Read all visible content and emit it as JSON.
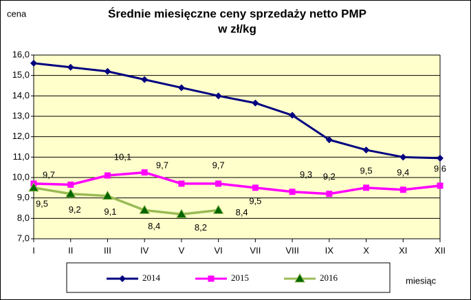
{
  "chart_data": {
    "type": "line",
    "title": "Średnie miesięczne ceny sprzedaży netto PMP",
    "subtitle": "w zł/kg",
    "ylabel": "cena",
    "xlabel": "miesiąc",
    "categories": [
      "I",
      "II",
      "III",
      "IV",
      "V",
      "VI",
      "VII",
      "VIII",
      "IX",
      "X",
      "XI",
      "XII"
    ],
    "ylim": [
      7,
      16
    ],
    "yticks": [
      {
        "value": 7,
        "label": "7,0"
      },
      {
        "value": 8,
        "label": "8,0"
      },
      {
        "value": 9,
        "label": "9,0"
      },
      {
        "value": 10,
        "label": "10,0"
      },
      {
        "value": 11,
        "label": "11,0"
      },
      {
        "value": 12,
        "label": "12,0"
      },
      {
        "value": 13,
        "label": "13,0"
      },
      {
        "value": 14,
        "label": "14,0"
      },
      {
        "value": 15,
        "label": "15,0"
      },
      {
        "value": 16,
        "label": "16,0"
      }
    ],
    "grid": true,
    "legend": "bottom",
    "series": [
      {
        "name": "2014",
        "color": "#000080",
        "marker": "diamond",
        "values": [
          15.6,
          15.4,
          15.2,
          14.8,
          14.4,
          14.0,
          13.65,
          13.05,
          11.85,
          11.35,
          11.0,
          10.95
        ]
      },
      {
        "name": "2015",
        "color": "#ff00ff",
        "marker": "square",
        "values": [
          9.7,
          9.65,
          10.1,
          10.25,
          9.7,
          9.7,
          9.5,
          9.3,
          9.2,
          9.5,
          9.4,
          9.6
        ],
        "value_labels": [
          "9,7",
          null,
          "10,1",
          null,
          "9,7",
          "9,7",
          "9,5",
          "9,3",
          "9,2",
          "9,5",
          "9,4",
          "9,6"
        ]
      },
      {
        "name": "2016",
        "color": "#99bb55",
        "marker_color": "#006600",
        "marker": "triangle",
        "values": [
          9.5,
          9.2,
          9.1,
          8.4,
          8.2,
          8.4,
          null,
          null,
          null,
          null,
          null,
          null
        ],
        "value_labels": [
          "9,5",
          "9,2",
          "9,1",
          "8,4",
          "8,2",
          "8,4",
          null,
          null,
          null,
          null,
          null,
          null
        ]
      }
    ]
  }
}
